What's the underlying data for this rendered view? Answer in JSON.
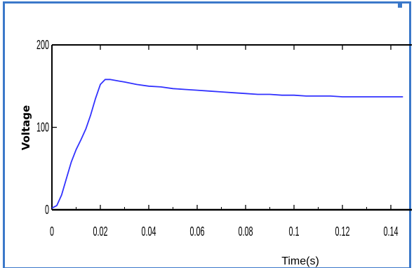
{
  "chart_data": {
    "type": "line",
    "ylabel": "Voltage",
    "xlabel": "Time(s)",
    "xlim": [
      0,
      0.145
    ],
    "ylim": [
      0,
      200
    ],
    "xticks": [
      "0",
      "0.02",
      "0.04",
      "0.06",
      "0.08",
      "0.1",
      "0.12",
      "0.14"
    ],
    "xtick_values": [
      0,
      0.02,
      0.04,
      0.06,
      0.08,
      0.1,
      0.12,
      0.14
    ],
    "yticks": [
      "0",
      "100",
      "200"
    ],
    "ytick_values": [
      0,
      100,
      200
    ],
    "grid": false,
    "series": [
      {
        "color": "#3232ff",
        "x": [
          0,
          0.002,
          0.004,
          0.006,
          0.008,
          0.01,
          0.012,
          0.014,
          0.016,
          0.018,
          0.02,
          0.022,
          0.024,
          0.026,
          0.028,
          0.03,
          0.035,
          0.04,
          0.045,
          0.05,
          0.055,
          0.06,
          0.065,
          0.07,
          0.075,
          0.08,
          0.085,
          0.09,
          0.095,
          0.1,
          0.105,
          0.11,
          0.115,
          0.12,
          0.125,
          0.13,
          0.135,
          0.14,
          0.145
        ],
        "y": [
          2,
          5,
          18,
          38,
          58,
          73,
          85,
          98,
          115,
          135,
          152,
          158,
          158,
          157,
          156,
          155,
          152,
          150,
          149,
          147,
          146,
          145,
          144,
          143,
          142,
          141,
          140,
          140,
          139,
          139,
          138,
          138,
          138,
          137,
          137,
          137,
          137,
          137,
          137
        ]
      }
    ]
  }
}
